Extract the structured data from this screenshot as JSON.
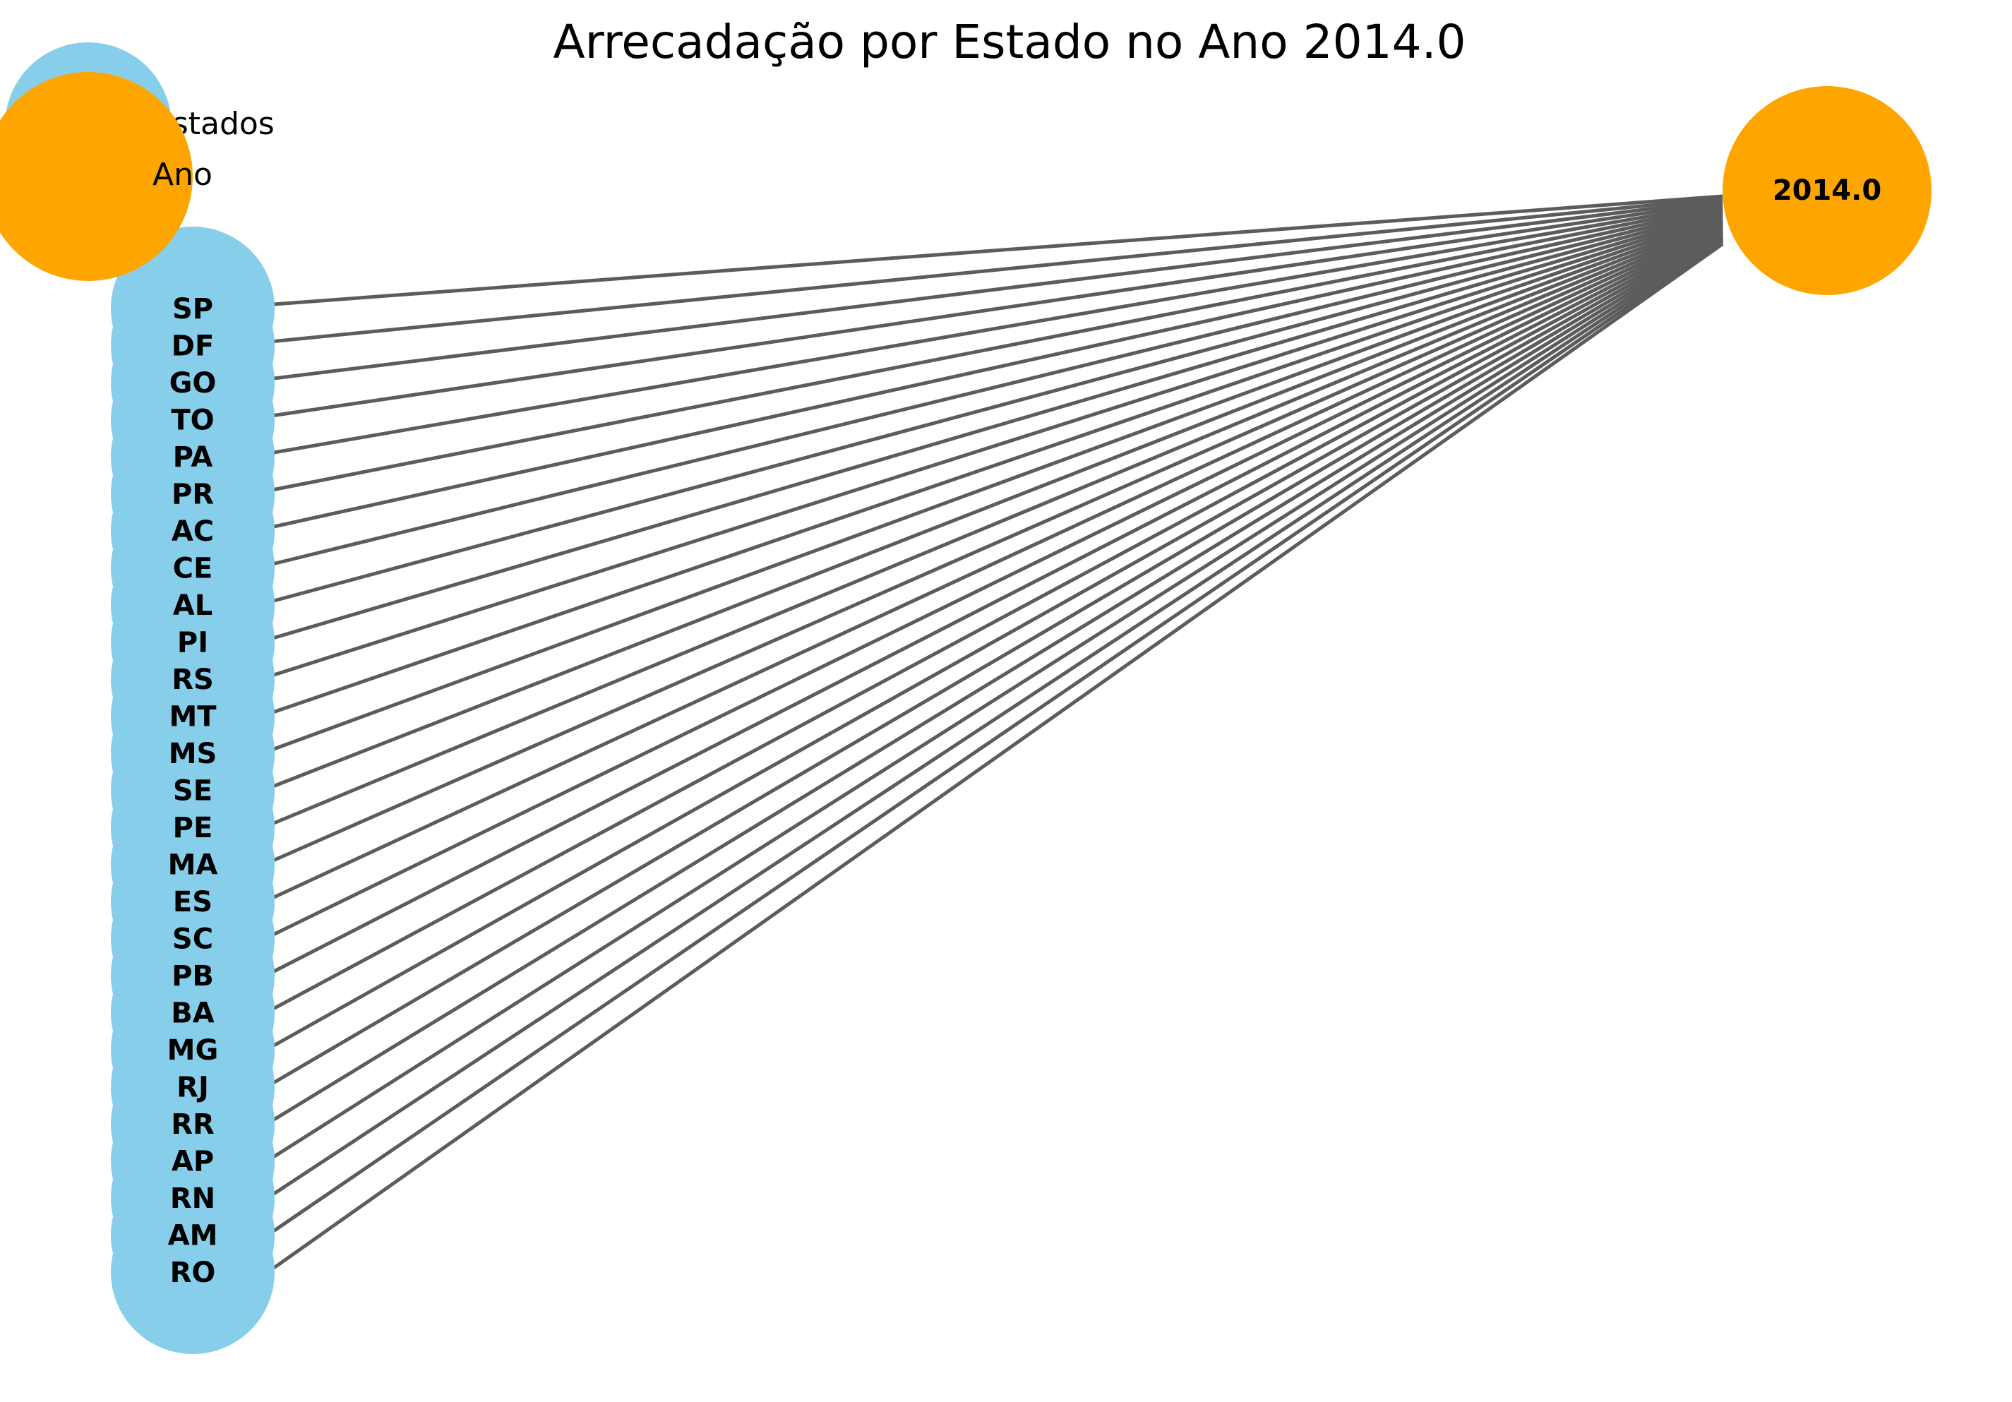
{
  "title": "Arrecadação por Estado no Ano 2014.0",
  "colors": {
    "state_node": "#87CEEB",
    "year_node": "#FFA500",
    "edge": "#5c5c5c",
    "text": "#000000"
  },
  "legend": [
    {
      "label": "Estados",
      "color": "#87CEEB"
    },
    {
      "label": "Ano",
      "color": "#FFA500"
    }
  ],
  "year_node": {
    "label": "2014.0"
  },
  "states": [
    "SP",
    "DF",
    "GO",
    "TO",
    "PA",
    "PR",
    "AC",
    "CE",
    "AL",
    "PI",
    "RS",
    "MT",
    "MS",
    "SE",
    "PE",
    "MA",
    "ES",
    "SC",
    "PB",
    "BA",
    "MG",
    "RJ",
    "RR",
    "AP",
    "RN",
    "AM",
    "RO"
  ]
}
